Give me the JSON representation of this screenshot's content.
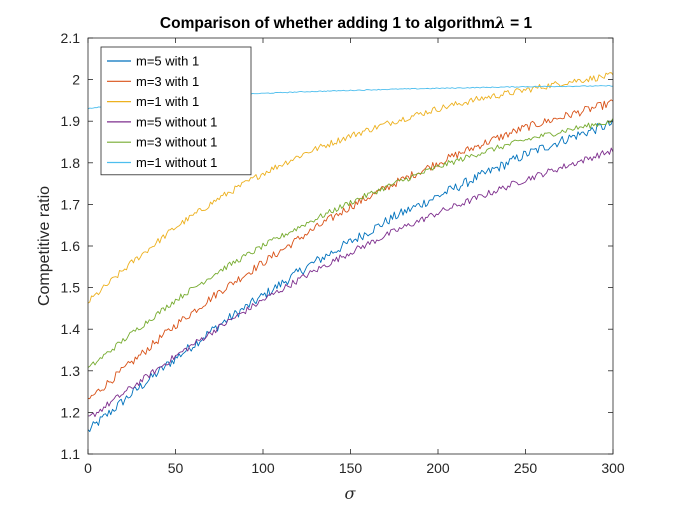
{
  "chart_data": {
    "type": "line",
    "title": "Comparison of whether adding 1 to algorithm",
    "title_symbol": "λ",
    "title_suffix": " = 1",
    "xlabel": "σ",
    "ylabel": "Competitive ratio",
    "xlim": [
      0,
      300
    ],
    "ylim": [
      1.1,
      2.1
    ],
    "x_ticks": [
      0,
      50,
      100,
      150,
      200,
      250,
      300
    ],
    "y_ticks": [
      1.1,
      1.2,
      1.3,
      1.4,
      1.5,
      1.6,
      1.7,
      1.8,
      1.9,
      2,
      2.1
    ],
    "y_tick_labels": [
      "1.1",
      "1.2",
      "1.3",
      "1.4",
      "1.5",
      "1.6",
      "1.7",
      "1.8",
      "1.9",
      "2",
      "2.1"
    ],
    "grid": false,
    "legend_position": "top-left",
    "x": [
      0,
      25,
      50,
      75,
      100,
      125,
      150,
      175,
      200,
      225,
      250,
      275,
      300
    ],
    "series": [
      {
        "name": "m=5 with 1",
        "color": "#0072BD",
        "noise": 0.012,
        "values": [
          1.155,
          1.245,
          1.33,
          1.41,
          1.48,
          1.55,
          1.61,
          1.67,
          1.72,
          1.77,
          1.82,
          1.86,
          1.895
        ]
      },
      {
        "name": "m=3 with 1",
        "color": "#D95319",
        "noise": 0.01,
        "values": [
          1.23,
          1.32,
          1.41,
          1.49,
          1.56,
          1.63,
          1.695,
          1.75,
          1.8,
          1.845,
          1.885,
          1.915,
          1.945
        ]
      },
      {
        "name": "m=1 with 1",
        "color": "#EDB120",
        "noise": 0.008,
        "values": [
          1.465,
          1.56,
          1.645,
          1.715,
          1.775,
          1.825,
          1.865,
          1.9,
          1.93,
          1.955,
          1.975,
          1.995,
          2.01
        ]
      },
      {
        "name": "m=5 without 1",
        "color": "#7E2F8E",
        "noise": 0.008,
        "values": [
          1.185,
          1.26,
          1.335,
          1.405,
          1.47,
          1.53,
          1.585,
          1.635,
          1.68,
          1.72,
          1.76,
          1.795,
          1.83
        ]
      },
      {
        "name": "m=3 without 1",
        "color": "#77AC30",
        "noise": 0.007,
        "values": [
          1.305,
          1.39,
          1.47,
          1.54,
          1.6,
          1.655,
          1.705,
          1.75,
          1.79,
          1.825,
          1.855,
          1.88,
          1.9
        ]
      },
      {
        "name": "m=1 without 1",
        "color": "#4DBEEE",
        "noise": 0.001,
        "values": [
          1.93,
          1.945,
          1.955,
          1.962,
          1.967,
          1.971,
          1.974,
          1.977,
          1.979,
          1.981,
          1.983,
          1.984,
          1.985
        ]
      }
    ]
  }
}
